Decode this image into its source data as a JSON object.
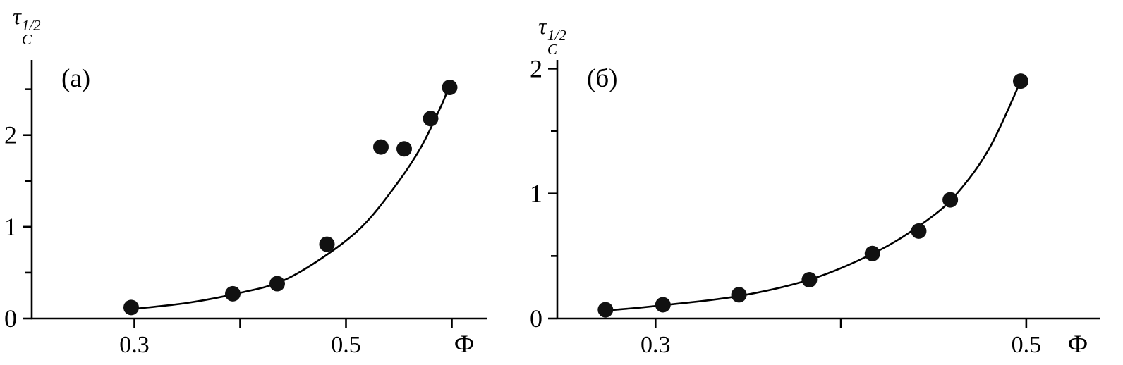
{
  "figure_title": "",
  "colors": {
    "ink": "#000000",
    "background": "#ffffff",
    "point_fill": "#111111"
  },
  "chart_data": [
    {
      "type": "scatter",
      "panel_label": "(а)",
      "x_axis_title": "Ф",
      "y_axis_title": {
        "base": "τ",
        "sup": "1/2",
        "sub": "C"
      },
      "xlim": [
        0.203,
        0.633
      ],
      "ylim": [
        0,
        2.82
      ],
      "grid": false,
      "legend": "none",
      "x_ticks": [
        {
          "value": 0.3,
          "label": "0.3"
        },
        {
          "value": 0.4,
          "label": ""
        },
        {
          "value": 0.5,
          "label": "0.5"
        },
        {
          "value": 0.6,
          "label": ""
        }
      ],
      "y_ticks": [
        {
          "value": 0,
          "label": "0"
        },
        {
          "value": 1,
          "label": "1"
        },
        {
          "value": 2,
          "label": "2"
        }
      ],
      "y_minor_ticks": [
        0.5,
        1.5,
        2.5
      ],
      "points": [
        [
          0.297,
          0.12
        ],
        [
          0.393,
          0.27
        ],
        [
          0.435,
          0.38
        ],
        [
          0.482,
          0.81
        ],
        [
          0.533,
          1.87
        ],
        [
          0.555,
          1.85
        ],
        [
          0.58,
          2.18
        ],
        [
          0.598,
          2.52
        ]
      ],
      "fit_curve": [
        [
          0.295,
          0.1
        ],
        [
          0.35,
          0.17
        ],
        [
          0.4,
          0.28
        ],
        [
          0.44,
          0.41
        ],
        [
          0.48,
          0.68
        ],
        [
          0.515,
          1.0
        ],
        [
          0.545,
          1.42
        ],
        [
          0.57,
          1.85
        ],
        [
          0.59,
          2.32
        ],
        [
          0.598,
          2.55
        ]
      ]
    },
    {
      "type": "scatter",
      "panel_label": "(б)",
      "x_axis_title": "Ф",
      "y_axis_title": {
        "base": "τ",
        "sup": "1/2",
        "sub": "C"
      },
      "xlim": [
        0.247,
        0.54
      ],
      "ylim": [
        0,
        2.07
      ],
      "grid": false,
      "legend": "none",
      "x_ticks": [
        {
          "value": 0.3,
          "label": "0.3"
        },
        {
          "value": 0.4,
          "label": ""
        },
        {
          "value": 0.5,
          "label": "0.5"
        }
      ],
      "y_ticks": [
        {
          "value": 0,
          "label": "0"
        },
        {
          "value": 1,
          "label": "1"
        },
        {
          "value": 2,
          "label": "2"
        }
      ],
      "y_minor_ticks": [
        0.5,
        1.5
      ],
      "points": [
        [
          0.273,
          0.07
        ],
        [
          0.304,
          0.11
        ],
        [
          0.345,
          0.19
        ],
        [
          0.383,
          0.31
        ],
        [
          0.417,
          0.52
        ],
        [
          0.442,
          0.7
        ],
        [
          0.459,
          0.95
        ],
        [
          0.497,
          1.9
        ]
      ],
      "fit_curve": [
        [
          0.27,
          0.06
        ],
        [
          0.3,
          0.1
        ],
        [
          0.345,
          0.18
        ],
        [
          0.385,
          0.32
        ],
        [
          0.42,
          0.54
        ],
        [
          0.445,
          0.77
        ],
        [
          0.462,
          0.99
        ],
        [
          0.48,
          1.36
        ],
        [
          0.497,
          1.9
        ]
      ]
    }
  ]
}
